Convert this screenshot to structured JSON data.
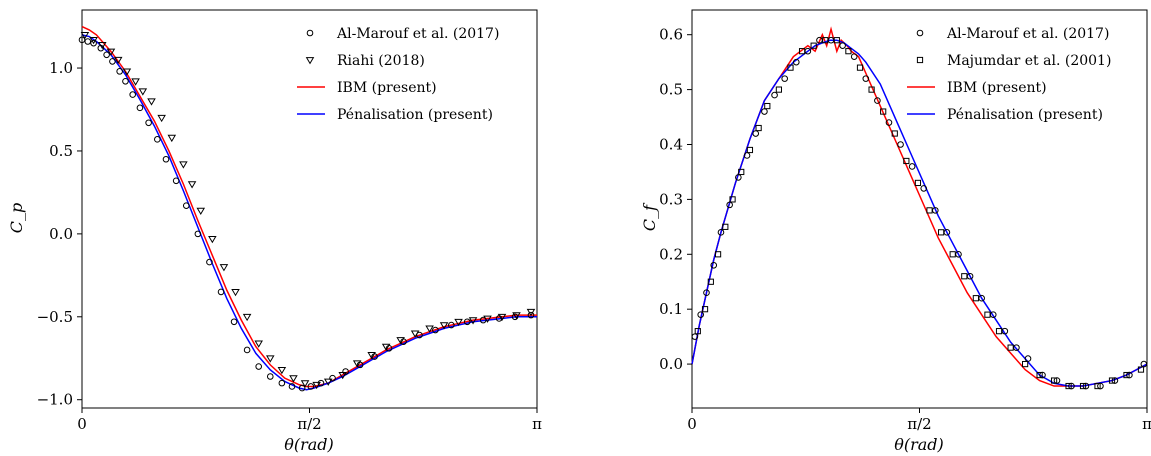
{
  "chart_data": [
    {
      "type": "line",
      "title": "",
      "xlabel": "θ(rad)",
      "ylabel": "C_p",
      "xlim": [
        0,
        3.14159
      ],
      "ylim": [
        -1.05,
        1.35
      ],
      "x_ticks": [
        {
          "value": 0,
          "label": "0"
        },
        {
          "value": 1.5708,
          "label": "π/2"
        },
        {
          "value": 3.14159,
          "label": "π"
        }
      ],
      "y_ticks": [
        {
          "value": -1.0,
          "label": "−1.0"
        },
        {
          "value": -0.5,
          "label": "−0.5"
        },
        {
          "value": 0.0,
          "label": "0.0"
        },
        {
          "value": 0.5,
          "label": "0.5"
        },
        {
          "value": 1.0,
          "label": "1.0"
        }
      ],
      "grid": false,
      "legend_position": "top-right",
      "series": [
        {
          "name": "Al-Marouf et al. (2017)",
          "kind": "marker",
          "marker": "circle",
          "color": "#000000",
          "x": [
            0.0,
            0.04,
            0.08,
            0.13,
            0.17,
            0.21,
            0.26,
            0.3,
            0.35,
            0.4,
            0.46,
            0.52,
            0.58,
            0.65,
            0.72,
            0.8,
            0.88,
            0.96,
            1.05,
            1.14,
            1.22,
            1.3,
            1.38,
            1.45,
            1.52,
            1.58,
            1.65,
            1.73,
            1.82,
            1.92,
            2.02,
            2.12,
            2.22,
            2.33,
            2.44,
            2.55,
            2.66,
            2.77,
            2.88,
            2.99,
            3.1
          ],
          "y": [
            1.17,
            1.16,
            1.15,
            1.12,
            1.08,
            1.04,
            0.98,
            0.92,
            0.84,
            0.76,
            0.67,
            0.57,
            0.45,
            0.32,
            0.17,
            0.0,
            -0.17,
            -0.35,
            -0.53,
            -0.7,
            -0.8,
            -0.86,
            -0.9,
            -0.92,
            -0.93,
            -0.92,
            -0.9,
            -0.87,
            -0.83,
            -0.79,
            -0.74,
            -0.69,
            -0.65,
            -0.61,
            -0.58,
            -0.55,
            -0.53,
            -0.52,
            -0.51,
            -0.5,
            -0.49
          ]
        },
        {
          "name": "Riahi (2018)",
          "kind": "marker",
          "marker": "triangle-down",
          "color": "#000000",
          "x": [
            0.02,
            0.08,
            0.14,
            0.2,
            0.25,
            0.31,
            0.37,
            0.42,
            0.48,
            0.55,
            0.62,
            0.7,
            0.76,
            0.82,
            0.9,
            0.98,
            1.06,
            1.14,
            1.22,
            1.3,
            1.38,
            1.46,
            1.54,
            1.62,
            1.7,
            1.8,
            1.9,
            2.0,
            2.1,
            2.2,
            2.3,
            2.4,
            2.5,
            2.6,
            2.7,
            2.8,
            2.9,
            3.0,
            3.1
          ],
          "y": [
            1.2,
            1.17,
            1.14,
            1.1,
            1.05,
            0.98,
            0.92,
            0.86,
            0.8,
            0.7,
            0.58,
            0.42,
            0.3,
            0.14,
            -0.03,
            -0.2,
            -0.35,
            -0.5,
            -0.66,
            -0.75,
            -0.82,
            -0.87,
            -0.9,
            -0.91,
            -0.89,
            -0.85,
            -0.78,
            -0.73,
            -0.68,
            -0.64,
            -0.6,
            -0.57,
            -0.55,
            -0.53,
            -0.52,
            -0.51,
            -0.5,
            -0.49,
            -0.47
          ]
        },
        {
          "name": "IBM (present)",
          "kind": "line",
          "color": "#ff0000",
          "x": [
            0.0,
            0.05,
            0.1,
            0.2,
            0.3,
            0.4,
            0.5,
            0.6,
            0.7,
            0.8,
            0.9,
            1.0,
            1.1,
            1.2,
            1.3,
            1.4,
            1.5,
            1.55,
            1.6,
            1.7,
            1.8,
            1.9,
            2.0,
            2.1,
            2.2,
            2.3,
            2.4,
            2.5,
            2.6,
            2.7,
            2.8,
            2.9,
            3.0,
            3.14159
          ],
          "y": [
            1.25,
            1.23,
            1.2,
            1.1,
            0.98,
            0.83,
            0.68,
            0.5,
            0.3,
            0.08,
            -0.13,
            -0.34,
            -0.52,
            -0.68,
            -0.79,
            -0.87,
            -0.91,
            -0.92,
            -0.92,
            -0.9,
            -0.85,
            -0.8,
            -0.75,
            -0.7,
            -0.66,
            -0.62,
            -0.59,
            -0.56,
            -0.54,
            -0.52,
            -0.51,
            -0.5,
            -0.49,
            -0.49
          ]
        },
        {
          "name": "Pénalisation (present)",
          "kind": "line",
          "color": "#0000ff",
          "x": [
            0.0,
            0.05,
            0.1,
            0.2,
            0.3,
            0.4,
            0.5,
            0.6,
            0.7,
            0.8,
            0.9,
            1.0,
            1.1,
            1.2,
            1.3,
            1.4,
            1.5,
            1.55,
            1.6,
            1.7,
            1.8,
            1.9,
            2.0,
            2.1,
            2.2,
            2.3,
            2.4,
            2.5,
            2.6,
            2.7,
            2.8,
            2.9,
            3.0,
            3.14159
          ],
          "y": [
            1.2,
            1.19,
            1.16,
            1.08,
            0.96,
            0.81,
            0.65,
            0.47,
            0.26,
            0.04,
            -0.18,
            -0.39,
            -0.57,
            -0.72,
            -0.82,
            -0.89,
            -0.93,
            -0.94,
            -0.93,
            -0.9,
            -0.86,
            -0.81,
            -0.76,
            -0.71,
            -0.67,
            -0.63,
            -0.6,
            -0.57,
            -0.55,
            -0.53,
            -0.52,
            -0.51,
            -0.5,
            -0.5
          ]
        }
      ]
    },
    {
      "type": "line",
      "title": "",
      "xlabel": "θ(rad)",
      "ylabel": "C_f",
      "xlim": [
        0,
        3.14159
      ],
      "ylim": [
        -0.08,
        0.645
      ],
      "x_ticks": [
        {
          "value": 0,
          "label": "0"
        },
        {
          "value": 1.5708,
          "label": "π/2"
        },
        {
          "value": 3.14159,
          "label": "π"
        }
      ],
      "y_ticks": [
        {
          "value": 0.0,
          "label": "0.0"
        },
        {
          "value": 0.1,
          "label": "0.1"
        },
        {
          "value": 0.2,
          "label": "0.2"
        },
        {
          "value": 0.3,
          "label": "0.3"
        },
        {
          "value": 0.4,
          "label": "0.4"
        },
        {
          "value": 0.5,
          "label": "0.5"
        },
        {
          "value": 0.6,
          "label": "0.6"
        }
      ],
      "grid": false,
      "legend_position": "top-right",
      "series": [
        {
          "name": "Al-Marouf et al. (2017)",
          "kind": "marker",
          "marker": "circle",
          "color": "#000000",
          "x": [
            0.02,
            0.06,
            0.1,
            0.15,
            0.2,
            0.26,
            0.32,
            0.38,
            0.44,
            0.5,
            0.57,
            0.64,
            0.72,
            0.8,
            0.88,
            0.96,
            1.04,
            1.12,
            1.2,
            1.28,
            1.36,
            1.44,
            1.52,
            1.6,
            1.68,
            1.76,
            1.84,
            1.92,
            2.0,
            2.08,
            2.16,
            2.24,
            2.32,
            2.42,
            2.52,
            2.62,
            2.72,
            2.82,
            2.92,
            3.02,
            3.12
          ],
          "y": [
            0.05,
            0.09,
            0.13,
            0.18,
            0.24,
            0.29,
            0.34,
            0.38,
            0.42,
            0.46,
            0.49,
            0.52,
            0.55,
            0.57,
            0.59,
            0.59,
            0.58,
            0.56,
            0.52,
            0.48,
            0.44,
            0.4,
            0.36,
            0.32,
            0.28,
            0.24,
            0.2,
            0.16,
            0.12,
            0.09,
            0.06,
            0.03,
            0.01,
            -0.02,
            -0.03,
            -0.04,
            -0.04,
            -0.04,
            -0.03,
            -0.02,
            0.0
          ]
        },
        {
          "name": "Majumdar et al. (2001)",
          "kind": "marker",
          "marker": "square",
          "color": "#000000",
          "x": [
            0.04,
            0.09,
            0.13,
            0.18,
            0.23,
            0.28,
            0.34,
            0.4,
            0.46,
            0.52,
            0.6,
            0.68,
            0.76,
            0.84,
            0.92,
            1.0,
            1.08,
            1.16,
            1.24,
            1.32,
            1.4,
            1.48,
            1.56,
            1.64,
            1.72,
            1.8,
            1.88,
            1.96,
            2.04,
            2.12,
            2.2,
            2.3,
            2.4,
            2.5,
            2.6,
            2.7,
            2.8,
            2.9,
            3.0,
            3.1
          ],
          "y": [
            0.06,
            0.1,
            0.15,
            0.2,
            0.25,
            0.3,
            0.35,
            0.39,
            0.43,
            0.47,
            0.5,
            0.54,
            0.57,
            0.58,
            0.59,
            0.59,
            0.57,
            0.54,
            0.5,
            0.46,
            0.42,
            0.37,
            0.33,
            0.28,
            0.24,
            0.2,
            0.16,
            0.12,
            0.09,
            0.06,
            0.03,
            0.0,
            -0.02,
            -0.03,
            -0.04,
            -0.04,
            -0.04,
            -0.03,
            -0.02,
            -0.01
          ]
        },
        {
          "name": "IBM (present)",
          "kind": "line",
          "color": "#ff0000",
          "x": [
            0.0,
            0.05,
            0.1,
            0.15,
            0.2,
            0.3,
            0.4,
            0.5,
            0.6,
            0.7,
            0.8,
            0.85,
            0.9,
            0.93,
            0.96,
            1.0,
            1.03,
            1.07,
            1.1,
            1.15,
            1.2,
            1.3,
            1.4,
            1.5,
            1.6,
            1.7,
            1.8,
            1.9,
            2.0,
            2.1,
            2.2,
            2.3,
            2.4,
            2.5,
            2.6,
            2.7,
            2.8,
            2.9,
            3.0,
            3.14159
          ],
          "y": [
            0.0,
            0.07,
            0.13,
            0.19,
            0.24,
            0.33,
            0.41,
            0.48,
            0.52,
            0.56,
            0.58,
            0.57,
            0.6,
            0.58,
            0.61,
            0.57,
            0.59,
            0.58,
            0.57,
            0.56,
            0.53,
            0.47,
            0.41,
            0.35,
            0.29,
            0.23,
            0.18,
            0.13,
            0.09,
            0.05,
            0.02,
            -0.01,
            -0.03,
            -0.04,
            -0.04,
            -0.04,
            -0.035,
            -0.03,
            -0.02,
            0.0
          ]
        },
        {
          "name": "Pénalisation (present)",
          "kind": "line",
          "color": "#0000ff",
          "x": [
            0.0,
            0.05,
            0.1,
            0.15,
            0.2,
            0.3,
            0.4,
            0.5,
            0.6,
            0.7,
            0.8,
            0.85,
            0.9,
            0.95,
            1.0,
            1.05,
            1.1,
            1.15,
            1.2,
            1.3,
            1.4,
            1.5,
            1.6,
            1.7,
            1.8,
            1.9,
            2.0,
            2.1,
            2.2,
            2.3,
            2.4,
            2.5,
            2.6,
            2.7,
            2.8,
            2.9,
            3.0,
            3.14159
          ],
          "y": [
            0.0,
            0.07,
            0.13,
            0.19,
            0.24,
            0.33,
            0.41,
            0.48,
            0.52,
            0.55,
            0.57,
            0.58,
            0.585,
            0.59,
            0.59,
            0.585,
            0.575,
            0.565,
            0.55,
            0.51,
            0.45,
            0.39,
            0.33,
            0.27,
            0.22,
            0.17,
            0.12,
            0.08,
            0.04,
            0.01,
            -0.02,
            -0.035,
            -0.04,
            -0.04,
            -0.035,
            -0.03,
            -0.02,
            0.0
          ]
        }
      ]
    }
  ]
}
